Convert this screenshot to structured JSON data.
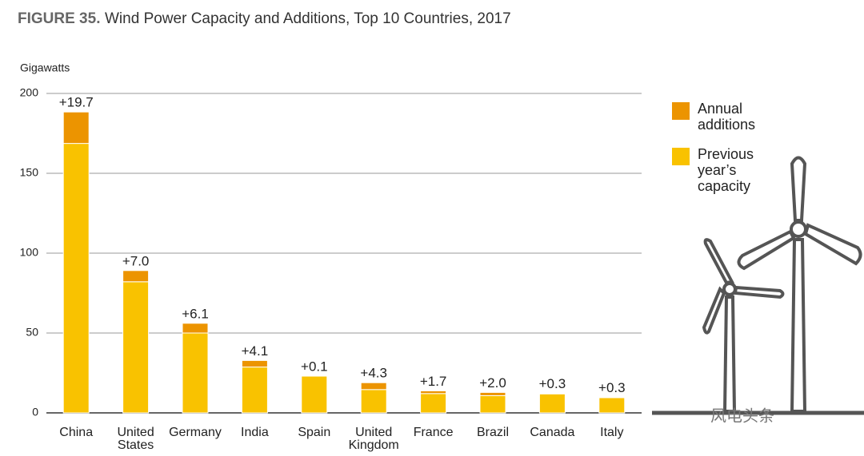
{
  "chart_data": {
    "type": "bar",
    "stacked": true,
    "figure_label": "FIGURE 35.",
    "title": "Wind Power Capacity and Additions, Top 10 Countries, 2017",
    "y_label": "Gigawatts",
    "categories": [
      "China",
      "United States",
      "Germany",
      "India",
      "Spain",
      "United Kingdom",
      "France",
      "Brazil",
      "Canada",
      "Italy"
    ],
    "series": [
      {
        "name": "Annual additions",
        "color": "#ec9400",
        "values": [
          19.7,
          7.0,
          6.1,
          4.1,
          0.1,
          4.3,
          1.7,
          2.0,
          0.3,
          0.3
        ],
        "value_labels": [
          "+19.7",
          "+7.0",
          "+6.1",
          "+4.1",
          "+0.1",
          "+4.3",
          "+1.7",
          "+2.0",
          "+0.3",
          "+0.3"
        ]
      },
      {
        "name": "Previous year’s capacity",
        "color": "#f9c200",
        "values": [
          168.7,
          82.1,
          50.0,
          28.7,
          23.0,
          14.6,
          12.1,
          10.8,
          11.9,
          9.5
        ]
      }
    ],
    "ylim": [
      0,
      200
    ],
    "yticks": [
      0,
      50,
      100,
      150,
      200
    ],
    "grid": true,
    "watermark": "风电头条"
  }
}
